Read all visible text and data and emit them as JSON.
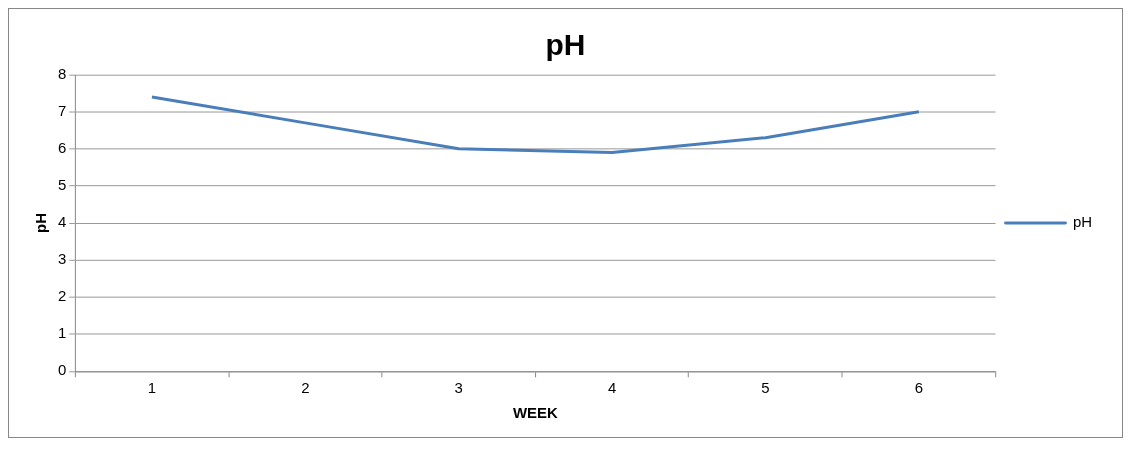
{
  "chart_data": {
    "type": "line",
    "title": "pH",
    "xlabel": "WEEK",
    "ylabel": "pH",
    "categories": [
      "1",
      "2",
      "3",
      "4",
      "5",
      "6"
    ],
    "series": [
      {
        "name": "pH",
        "color": "#4a7ebb",
        "values": [
          7.4,
          6.7,
          6.0,
          5.9,
          6.3,
          7.0
        ]
      }
    ],
    "ylim": [
      0,
      8
    ],
    "yticks": [
      0,
      1,
      2,
      3,
      4,
      5,
      6,
      7,
      8
    ],
    "grid": "y",
    "legend": "right",
    "marker": "none",
    "line_style": "solid"
  }
}
